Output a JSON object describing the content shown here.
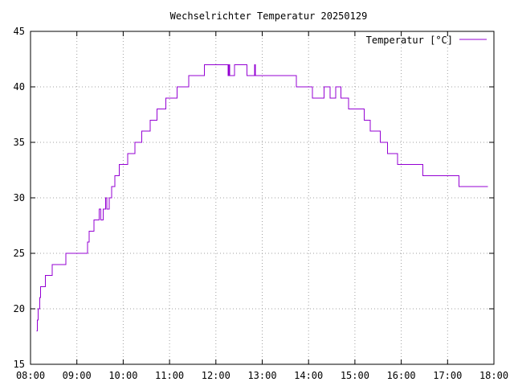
{
  "chart_data": {
    "type": "line",
    "title": "Wechselrichter Temperatur 20250129",
    "xlabel": "",
    "ylabel": "",
    "xlim": [
      "08:00",
      "18:00"
    ],
    "ylim": [
      15,
      45
    ],
    "x_ticks": [
      "08:00",
      "09:00",
      "10:00",
      "11:00",
      "12:00",
      "13:00",
      "14:00",
      "15:00",
      "16:00",
      "17:00",
      "18:00"
    ],
    "y_ticks": [
      15,
      20,
      25,
      30,
      35,
      40,
      45
    ],
    "grid": true,
    "legend_position": "top-right",
    "series": [
      {
        "name": "Temperatur [°C]",
        "color": "#9400d3",
        "step": true,
        "points": [
          [
            "08:08",
            18
          ],
          [
            "08:09",
            19
          ],
          [
            "08:10",
            20
          ],
          [
            "08:12",
            21
          ],
          [
            "08:13",
            22
          ],
          [
            "08:19",
            23
          ],
          [
            "08:28",
            24
          ],
          [
            "08:46",
            25
          ],
          [
            "09:14",
            26
          ],
          [
            "09:16",
            27
          ],
          [
            "09:22",
            28
          ],
          [
            "09:29",
            29
          ],
          [
            "09:31",
            28
          ],
          [
            "09:34",
            29
          ],
          [
            "09:37",
            30
          ],
          [
            "09:39",
            29
          ],
          [
            "09:42",
            30
          ],
          [
            "09:45",
            31
          ],
          [
            "09:49",
            32
          ],
          [
            "09:55",
            33
          ],
          [
            "10:06",
            34
          ],
          [
            "10:15",
            35
          ],
          [
            "10:24",
            36
          ],
          [
            "10:35",
            37
          ],
          [
            "10:44",
            38
          ],
          [
            "10:55",
            39
          ],
          [
            "11:10",
            40
          ],
          [
            "11:25",
            41
          ],
          [
            "11:45",
            42
          ],
          [
            "12:16",
            41
          ],
          [
            "12:17",
            42
          ],
          [
            "12:18",
            41
          ],
          [
            "12:24",
            42
          ],
          [
            "12:40",
            41
          ],
          [
            "12:50",
            42
          ],
          [
            "12:51",
            41
          ],
          [
            "13:44",
            40
          ],
          [
            "14:05",
            39
          ],
          [
            "14:20",
            40
          ],
          [
            "14:28",
            39
          ],
          [
            "14:35",
            40
          ],
          [
            "14:42",
            39
          ],
          [
            "14:52",
            38
          ],
          [
            "15:12",
            37
          ],
          [
            "15:20",
            36
          ],
          [
            "15:33",
            35
          ],
          [
            "15:42",
            34
          ],
          [
            "15:55",
            33
          ],
          [
            "16:28",
            32
          ],
          [
            "17:15",
            31
          ],
          [
            "17:52",
            31
          ]
        ]
      }
    ]
  }
}
